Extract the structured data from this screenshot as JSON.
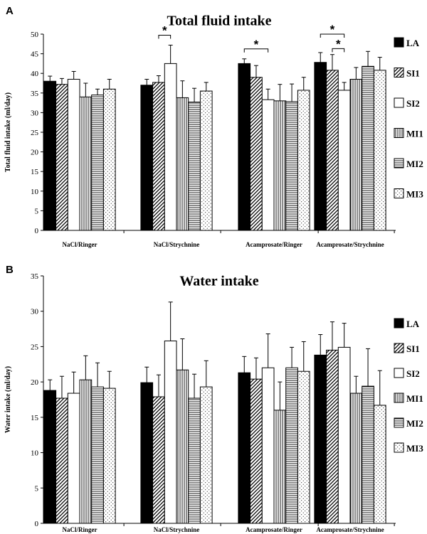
{
  "chart_data": [
    {
      "panel": "A",
      "type": "bar",
      "title": "Total fluid intake",
      "ylabel": "Total fluid intake (ml/day)",
      "xlabel": "",
      "ylim": [
        0,
        50
      ],
      "yticks": [
        0,
        5,
        10,
        15,
        20,
        25,
        30,
        35,
        40,
        45,
        50
      ],
      "categories": [
        "NaCl/Ringer",
        "NaCl/Strychnine",
        "Acamprosate/Ringer",
        "Acamprosate/Strychnine"
      ],
      "series": [
        {
          "name": "LA",
          "values": [
            38,
            37,
            42.5,
            42.8
          ],
          "errors": [
            1.3,
            1.5,
            1.2,
            2.5
          ]
        },
        {
          "name": "SI1",
          "values": [
            37.2,
            37.7,
            39,
            40.8
          ],
          "errors": [
            1.5,
            1.7,
            3.0,
            4.0
          ]
        },
        {
          "name": "SI2",
          "values": [
            38.5,
            42.5,
            33.3,
            35.7
          ],
          "errors": [
            2.0,
            4.7,
            2.7,
            2.0
          ]
        },
        {
          "name": "MI1",
          "values": [
            34,
            33.8,
            33,
            38.5
          ],
          "errors": [
            3.5,
            4.3,
            4.2,
            3.0
          ]
        },
        {
          "name": "MI2",
          "values": [
            34.5,
            32.7,
            32.8,
            41.8
          ],
          "errors": [
            1.5,
            3.5,
            4.5,
            3.8
          ]
        },
        {
          "name": "MI3",
          "values": [
            36,
            35.5,
            35.7,
            40.8
          ],
          "errors": [
            2.5,
            2.2,
            3.3,
            3.3
          ]
        }
      ],
      "significance": [
        {
          "category": "NaCl/Strychnine",
          "from": "SI1",
          "to": "SI2",
          "label": "*"
        },
        {
          "category": "Acamprosate/Ringer",
          "from": "LA",
          "to": "SI2",
          "label": "*"
        },
        {
          "category": "Acamprosate/Strychnine",
          "from": "LA",
          "to": "SI2",
          "label": "*"
        },
        {
          "category": "Acamprosate/Strychnine",
          "from": "SI1",
          "to": "SI2",
          "label": "*"
        }
      ]
    },
    {
      "panel": "B",
      "type": "bar",
      "title": "Water intake",
      "ylabel": "Water intake (ml/day)",
      "xlabel": "",
      "ylim": [
        0,
        35
      ],
      "yticks": [
        0,
        5,
        10,
        15,
        20,
        25,
        30,
        35
      ],
      "categories": [
        "NaCl/Ringer",
        "NaCl/Strychnine",
        "Acamprosate/Ringer",
        "Acamprosate/Strychnine"
      ],
      "series": [
        {
          "name": "LA",
          "values": [
            18.8,
            19.9,
            21.3,
            23.8
          ],
          "errors": [
            1.5,
            2.2,
            2.3,
            2.9
          ]
        },
        {
          "name": "SI1",
          "values": [
            17.7,
            17.9,
            20.4,
            24.5
          ],
          "errors": [
            3.1,
            3.1,
            3.0,
            4.0
          ]
        },
        {
          "name": "SI2",
          "values": [
            18.4,
            25.8,
            22,
            24.9
          ],
          "errors": [
            3.0,
            5.5,
            4.8,
            3.4
          ]
        },
        {
          "name": "MI1",
          "values": [
            20.3,
            21.7,
            16,
            18.4
          ],
          "errors": [
            3.4,
            4.4,
            4.0,
            2.4
          ]
        },
        {
          "name": "MI2",
          "values": [
            19.3,
            17.7,
            22,
            19.4
          ],
          "errors": [
            3.4,
            3.4,
            2.9,
            5.3
          ]
        },
        {
          "name": "MI3",
          "values": [
            19.1,
            19.3,
            21.5,
            16.7
          ],
          "errors": [
            2.4,
            3.7,
            4.2,
            4.9
          ]
        }
      ]
    }
  ],
  "legend": [
    "LA",
    "SI1",
    "SI2",
    "MI1",
    "MI2",
    "MI3"
  ]
}
